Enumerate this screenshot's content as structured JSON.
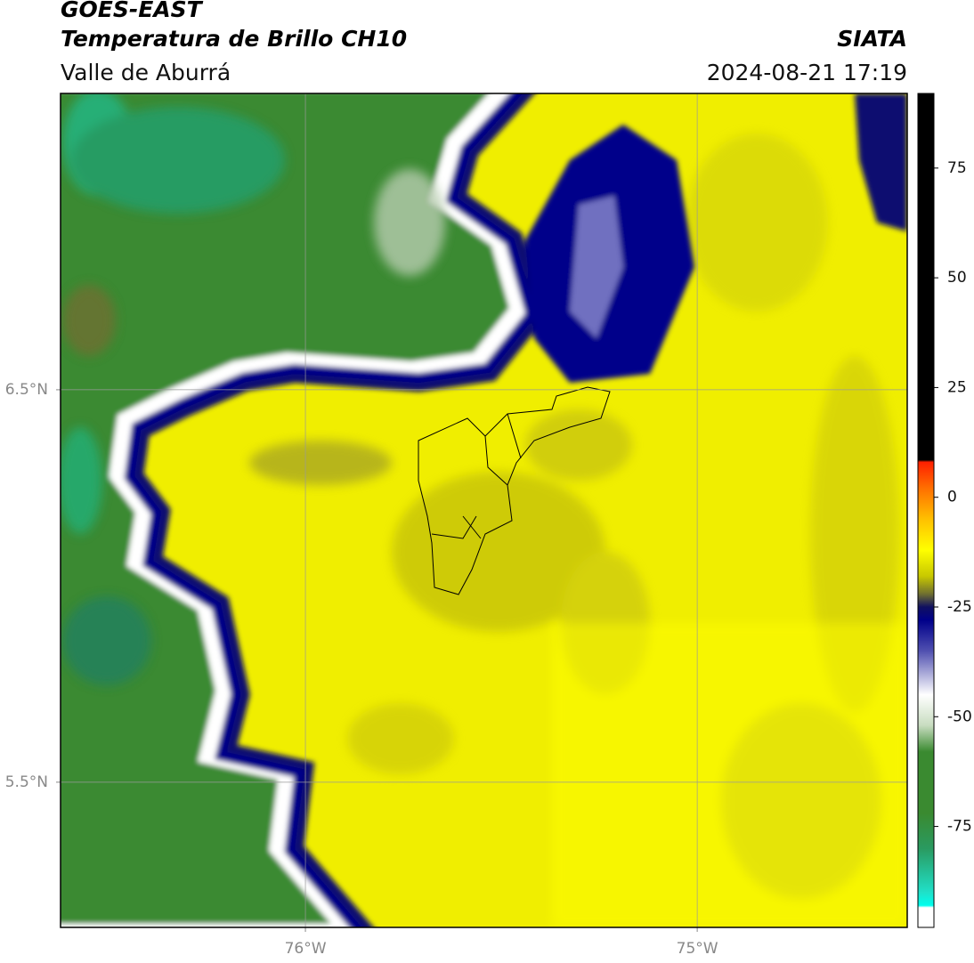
{
  "chart_data": {
    "type": "map",
    "title": "GOES-EAST",
    "subtitle": "Temperatura de Brillo CH10",
    "region": "Valle de Aburrá",
    "source": "SIATA",
    "timestamp": "2024-08-21 17:19",
    "xlim": [
      -76.625,
      -74.464
    ],
    "xticks": [
      {
        "value": -76,
        "label": "76°W"
      },
      {
        "value": -75,
        "label": "75°W"
      }
    ],
    "ylim": [
      5.13,
      7.255
    ],
    "yticks": [
      {
        "value": 6.5,
        "label": "6.5°N"
      },
      {
        "value": 5.5,
        "label": "5.5°N"
      }
    ],
    "grid": true,
    "colorbar": {
      "lim": [
        -98,
        92
      ],
      "ticks": [
        75,
        50,
        25,
        0,
        -25,
        -50,
        -75
      ],
      "stops": [
        {
          "value": 92,
          "color": "#000000"
        },
        {
          "value": 8.5,
          "color": "#000000"
        },
        {
          "value": 8,
          "color": "#ff2000"
        },
        {
          "value": 2,
          "color": "#ff7000"
        },
        {
          "value": -5,
          "color": "#ffc000"
        },
        {
          "value": -12,
          "color": "#ffff00"
        },
        {
          "value": -18,
          "color": "#c8c800"
        },
        {
          "value": -22,
          "color": "#707030"
        },
        {
          "value": -25,
          "color": "#101060"
        },
        {
          "value": -28,
          "color": "#00008a"
        },
        {
          "value": -35,
          "color": "#5050b0"
        },
        {
          "value": -45,
          "color": "#ffffff"
        },
        {
          "value": -52,
          "color": "#c8dcc0"
        },
        {
          "value": -58,
          "color": "#3a8a30"
        },
        {
          "value": -72,
          "color": "#3a8a30"
        },
        {
          "value": -80,
          "color": "#2a9a60"
        },
        {
          "value": -90,
          "color": "#20e0c8"
        },
        {
          "value": -93,
          "color": "#00ffee"
        },
        {
          "value": -93.5,
          "color": "#ffffff"
        },
        {
          "value": -98,
          "color": "#ffffff"
        }
      ]
    }
  }
}
